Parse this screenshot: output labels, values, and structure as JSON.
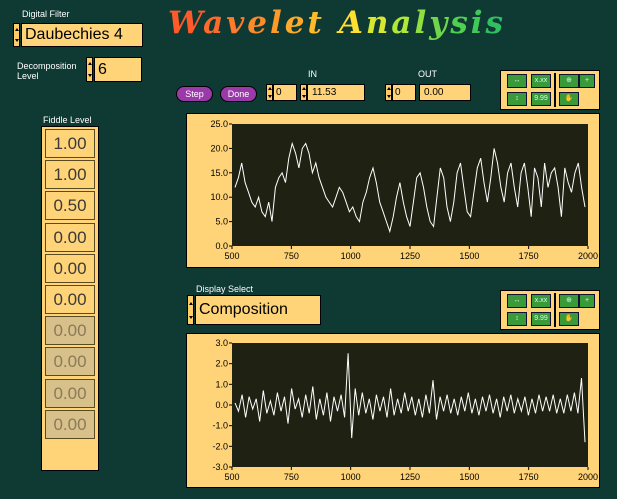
{
  "digital_filter": {
    "label": "Digital Filter",
    "value": "Daubechies 4"
  },
  "decomposition": {
    "label_line1": "Decomposition",
    "label_line2": "Level",
    "value": "6"
  },
  "title_letters": [
    {
      "ch": "W",
      "color": "#ff5a2a"
    },
    {
      "ch": "a",
      "color": "#ff6a2a"
    },
    {
      "ch": "v",
      "color": "#ff7a2a"
    },
    {
      "ch": "e",
      "color": "#ff8a2a"
    },
    {
      "ch": "l",
      "color": "#ff9a2a"
    },
    {
      "ch": "e",
      "color": "#ffaa2a"
    },
    {
      "ch": "t",
      "color": "#ffba2a"
    },
    {
      "ch": "A",
      "color": "#ffe030"
    },
    {
      "ch": "n",
      "color": "#d8e830"
    },
    {
      "ch": "a",
      "color": "#b0e838"
    },
    {
      "ch": "l",
      "color": "#90e040"
    },
    {
      "ch": "y",
      "color": "#70d848"
    },
    {
      "ch": "s",
      "color": "#50d050"
    },
    {
      "ch": "i",
      "color": "#40c858"
    },
    {
      "ch": "s",
      "color": "#30c060"
    }
  ],
  "buttons": {
    "step": "Step",
    "done": "Done"
  },
  "in_control": {
    "label": "IN",
    "index": "0",
    "value": "11.53"
  },
  "out_control": {
    "label": "OUT",
    "index": "0",
    "value": "0.00"
  },
  "fiddle": {
    "label": "Fiddle Level",
    "levels": [
      "1.00",
      "1.00",
      "0.50",
      "0.00",
      "0.00",
      "0.00",
      "0.00",
      "0.00",
      "0.00",
      "0.00"
    ],
    "disabled_from": 6
  },
  "display_select": {
    "label": "Display Select",
    "value": "Composition"
  },
  "tool_icons": [
    "x-scale-icon",
    "x-format-icon",
    "zoom-icon",
    "crosshair-icon",
    "y-scale-icon",
    "y-format-icon",
    "hand-icon"
  ],
  "tool_texts": {
    "x_format": "x.xx",
    "y_format": "9.99"
  },
  "colors": {
    "background": "#0f3a34",
    "panel": "#ffd479",
    "plot": "#1f2112",
    "trace": "#ffffff",
    "button": "#9a3aa8"
  },
  "chart_data": [
    {
      "type": "line",
      "x_ticks": [
        "500",
        "750",
        "1000",
        "1250",
        "1500",
        "1750",
        "2000"
      ],
      "y_ticks": [
        "25.0",
        "20.0",
        "15.0",
        "10.0",
        "5.0",
        "0.0"
      ],
      "xlim": [
        500,
        2000
      ],
      "ylim": [
        0,
        25
      ],
      "series": [
        {
          "x_start": 500,
          "x_end": 2000,
          "values": [
            12,
            14,
            17,
            13,
            11,
            9,
            8,
            10,
            7,
            6,
            9,
            5,
            12,
            14,
            15,
            13,
            18,
            21,
            19,
            16,
            20,
            21,
            19,
            15,
            17,
            14,
            12,
            10,
            9,
            8,
            10,
            12,
            11,
            9,
            7,
            8,
            6,
            5,
            9,
            11,
            14,
            16,
            13,
            9,
            7,
            5,
            3,
            6,
            10,
            13,
            9,
            6,
            4,
            9,
            14,
            15,
            12,
            8,
            5,
            4,
            10,
            16,
            14,
            8,
            5,
            9,
            15,
            17,
            12,
            7,
            6,
            11,
            16,
            18,
            13,
            9,
            14,
            20,
            17,
            12,
            9,
            15,
            17,
            12,
            8,
            15,
            17,
            12,
            6,
            16,
            14,
            8,
            17,
            12,
            15,
            16,
            12,
            6,
            16,
            13,
            11,
            15,
            17,
            12,
            8
          ]
        }
      ]
    },
    {
      "type": "line",
      "x_ticks": [
        "500",
        "750",
        "1000",
        "1250",
        "1500",
        "1750",
        "2000"
      ],
      "y_ticks": [
        "3.0",
        "2.0",
        "1.0",
        "0.0",
        "-1.0",
        "-2.0",
        "-3.0"
      ],
      "xlim": [
        500,
        2000
      ],
      "ylim": [
        -3,
        3
      ],
      "series": [
        {
          "x_start": 500,
          "x_end": 2000,
          "note_values_generated": false,
          "values": [
            0.1,
            -0.3,
            0.5,
            -0.6,
            0.4,
            -0.2,
            0.3,
            -0.8,
            0.7,
            -0.4,
            0.2,
            -0.5,
            0.6,
            -0.3,
            0.4,
            -0.9,
            0.8,
            -0.2,
            0.3,
            -0.6,
            0.5,
            -0.4,
            0.9,
            -0.7,
            0.3,
            -0.5,
            0.6,
            -0.8,
            0.4,
            -0.3,
            0.5,
            -0.6,
            2.5,
            -1.6,
            0.8,
            -0.5,
            0.6,
            -0.4,
            0.3,
            -0.7,
            0.5,
            -0.3,
            0.4,
            -0.6,
            0.8,
            -0.5,
            0.3,
            -0.4,
            0.6,
            -0.3,
            0.4,
            -0.5,
            0.3,
            -0.6,
            0.5,
            -0.4,
            1.2,
            -0.7,
            0.4,
            -0.3,
            0.5,
            -0.4,
            0.3,
            -0.5,
            0.4,
            -0.3,
            0.6,
            -0.4,
            0.3,
            -0.5,
            0.4,
            -0.3,
            0.5,
            -0.4,
            0.3,
            -0.6,
            0.4,
            -0.3,
            0.5,
            -0.4,
            0.3,
            -0.3,
            0.4,
            -0.5,
            0.3,
            -0.4,
            0.5,
            -0.3,
            0.4,
            -0.3,
            0.5,
            -0.4,
            0.3,
            -0.4,
            0.5,
            -0.3,
            0.6,
            -0.4,
            1.3,
            -1.8
          ]
        }
      ]
    }
  ]
}
